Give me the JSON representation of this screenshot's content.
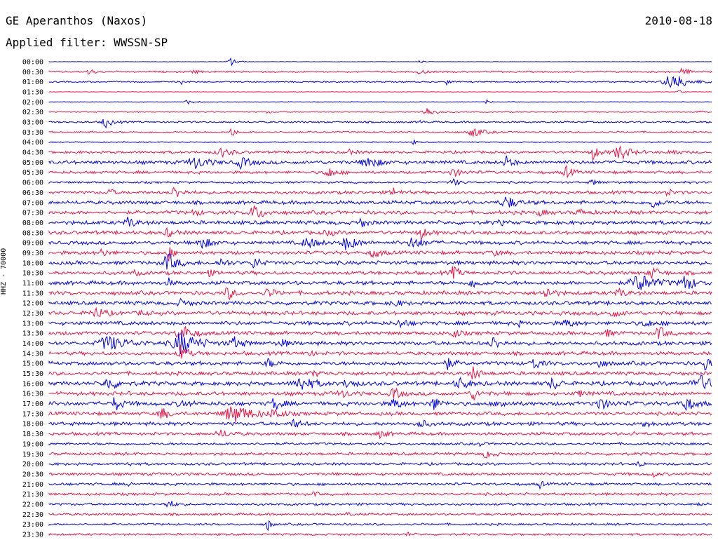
{
  "header": {
    "station": "GE Aperanthos (Naxos)",
    "date": "2010-08-18",
    "filter": "Applied filter: WWSSN-SP"
  },
  "chart_data": {
    "type": "line",
    "title": "GE Aperanthos (Naxos)",
    "subtitle": "Applied filter: WWSSN-SP",
    "date": "2010-08-18",
    "ylabel": "HHZ - 70000",
    "xlabel": "",
    "colors": [
      "#0000ee",
      "#ee1144"
    ],
    "rows": [
      "00:00",
      "00:30",
      "01:00",
      "01:30",
      "02:00",
      "02:30",
      "03:00",
      "03:30",
      "04:00",
      "04:30",
      "05:00",
      "05:30",
      "06:00",
      "06:30",
      "07:00",
      "07:30",
      "08:00",
      "08:30",
      "09:00",
      "09:30",
      "10:00",
      "10:30",
      "11:00",
      "11:30",
      "12:00",
      "12:30",
      "13:00",
      "13:30",
      "14:00",
      "14:30",
      "15:00",
      "15:30",
      "16:00",
      "16:30",
      "17:00",
      "17:30",
      "18:00",
      "18:30",
      "19:00",
      "19:30",
      "20:00",
      "20:30",
      "21:00",
      "21:30",
      "22:00",
      "22:30",
      "23:00",
      "23:30"
    ],
    "noise": [
      0.3,
      1.4,
      1.2,
      0.3,
      0.6,
      0.8,
      1.5,
      1.4,
      1.0,
      2.2,
      3.0,
      2.4,
      1.8,
      2.6,
      3.0,
      3.0,
      3.2,
      3.0,
      3.0,
      3.0,
      3.2,
      3.0,
      3.2,
      3.2,
      3.2,
      3.2,
      3.2,
      3.0,
      3.2,
      3.0,
      3.2,
      3.0,
      3.4,
      3.2,
      3.4,
      3.0,
      3.0,
      2.6,
      2.0,
      2.4,
      2.2,
      2.4,
      2.2,
      2.2,
      2.0,
      2.0,
      1.8,
      1.8
    ],
    "events": [
      [
        [
          0.275,
          6,
          2
        ],
        [
          0.56,
          3,
          1
        ]
      ],
      [
        [
          0.06,
          4,
          2
        ],
        [
          0.22,
          2,
          2
        ],
        [
          0.56,
          3,
          2
        ],
        [
          0.955,
          5,
          2
        ]
      ],
      [
        [
          0.2,
          3,
          1
        ],
        [
          0.6,
          4,
          1
        ],
        [
          0.94,
          12,
          5
        ]
      ],
      [
        [
          0.95,
          3,
          1
        ]
      ],
      [
        [
          0.21,
          3,
          2
        ],
        [
          0.66,
          3,
          1
        ]
      ],
      [
        [
          0.33,
          2,
          1
        ],
        [
          0.57,
          6,
          3
        ],
        [
          0.98,
          3,
          1
        ]
      ],
      [
        [
          0.085,
          8,
          2
        ],
        [
          0.56,
          2,
          1
        ]
      ],
      [
        [
          0.275,
          9,
          1
        ],
        [
          0.64,
          7,
          3
        ]
      ],
      [
        [
          0.55,
          3,
          1
        ]
      ],
      [
        [
          0.26,
          6,
          3
        ],
        [
          0.45,
          4,
          2
        ],
        [
          0.82,
          10,
          2
        ],
        [
          0.86,
          12,
          3
        ],
        [
          0.94,
          5,
          2
        ]
      ],
      [
        [
          0.22,
          8,
          4
        ],
        [
          0.29,
          7,
          3
        ],
        [
          0.48,
          10,
          3
        ],
        [
          0.69,
          8,
          2
        ]
      ],
      [
        [
          0.42,
          9,
          2
        ],
        [
          0.61,
          5,
          3
        ],
        [
          0.78,
          8,
          2
        ]
      ],
      [
        [
          0.61,
          5,
          2
        ],
        [
          0.82,
          4,
          2
        ]
      ],
      [
        [
          0.09,
          9,
          1
        ],
        [
          0.19,
          9,
          2
        ],
        [
          0.52,
          6,
          2
        ],
        [
          0.93,
          5,
          2
        ]
      ],
      [
        [
          0.69,
          9,
          3
        ],
        [
          0.91,
          8,
          2
        ]
      ],
      [
        [
          0.22,
          4,
          2
        ],
        [
          0.31,
          10,
          3
        ],
        [
          0.74,
          4,
          2
        ],
        [
          0.8,
          4,
          2
        ]
      ],
      [
        [
          0.12,
          8,
          2
        ],
        [
          0.47,
          6,
          2
        ],
        [
          0.68,
          4,
          1
        ]
      ],
      [
        [
          0.18,
          6,
          2
        ],
        [
          0.42,
          4,
          2
        ],
        [
          0.56,
          9,
          2
        ]
      ],
      [
        [
          0.23,
          8,
          3
        ],
        [
          0.39,
          8,
          3
        ],
        [
          0.45,
          10,
          3
        ],
        [
          0.55,
          9,
          3
        ]
      ],
      [
        [
          0.08,
          5,
          2
        ],
        [
          0.18,
          14,
          1
        ],
        [
          0.49,
          7,
          2
        ],
        [
          0.67,
          4,
          2
        ]
      ],
      [
        [
          0.18,
          12,
          3
        ],
        [
          0.26,
          6,
          2
        ],
        [
          0.31,
          8,
          2
        ]
      ],
      [
        [
          0.13,
          5,
          1
        ],
        [
          0.24,
          4,
          2
        ],
        [
          0.61,
          8,
          2
        ],
        [
          0.91,
          9,
          2
        ]
      ],
      [
        [
          0.18,
          6,
          1
        ],
        [
          0.64,
          8,
          2
        ],
        [
          0.89,
          12,
          5
        ],
        [
          0.96,
          10,
          3
        ]
      ],
      [
        [
          0.27,
          9,
          2
        ],
        [
          0.33,
          7,
          2
        ],
        [
          0.75,
          9,
          2
        ],
        [
          0.86,
          6,
          2
        ]
      ],
      [
        [
          0.2,
          5,
          2
        ],
        [
          0.52,
          5,
          2
        ]
      ],
      [
        [
          0.07,
          7,
          3
        ],
        [
          0.14,
          5,
          1
        ],
        [
          0.85,
          6,
          2
        ]
      ],
      [
        [
          0.53,
          6,
          2
        ],
        [
          0.71,
          4,
          1
        ],
        [
          0.78,
          6,
          2
        ],
        [
          0.9,
          6,
          2
        ]
      ],
      [
        [
          0.2,
          12,
          3
        ],
        [
          0.61,
          6,
          2
        ],
        [
          0.84,
          5,
          2
        ],
        [
          0.92,
          9,
          2
        ]
      ],
      [
        [
          0.09,
          10,
          6
        ],
        [
          0.2,
          16,
          5
        ],
        [
          0.28,
          7,
          3
        ],
        [
          0.35,
          6,
          2
        ],
        [
          0.67,
          9,
          2
        ]
      ],
      [
        [
          0.2,
          12,
          2
        ],
        [
          0.39,
          4,
          2
        ]
      ],
      [
        [
          0.33,
          6,
          2
        ],
        [
          0.6,
          8,
          2
        ],
        [
          0.73,
          9,
          2
        ],
        [
          0.83,
          6,
          2
        ],
        [
          0.99,
          10,
          2
        ]
      ],
      [
        [
          0.4,
          4,
          2
        ],
        [
          0.64,
          9,
          2
        ]
      ],
      [
        [
          0.09,
          8,
          3
        ],
        [
          0.38,
          10,
          4
        ],
        [
          0.45,
          7,
          2
        ],
        [
          0.62,
          7,
          3
        ],
        [
          0.76,
          9,
          2
        ],
        [
          0.98,
          12,
          4
        ]
      ],
      [
        [
          0.44,
          6,
          2
        ],
        [
          0.52,
          8,
          2
        ],
        [
          0.64,
          8,
          2
        ],
        [
          0.8,
          4,
          2
        ]
      ],
      [
        [
          0.1,
          10,
          2
        ],
        [
          0.2,
          6,
          2
        ],
        [
          0.34,
          9,
          2
        ],
        [
          0.52,
          8,
          2
        ],
        [
          0.58,
          9,
          2
        ],
        [
          0.68,
          6,
          2
        ],
        [
          0.83,
          8,
          3
        ],
        [
          0.96,
          9,
          3
        ]
      ],
      [
        [
          0.17,
          9,
          2
        ],
        [
          0.28,
          12,
          6
        ],
        [
          0.34,
          8,
          2
        ]
      ],
      [
        [
          0.37,
          6,
          2
        ],
        [
          0.56,
          6,
          2
        ],
        [
          0.9,
          4,
          2
        ]
      ],
      [
        [
          0.26,
          5,
          3
        ],
        [
          0.5,
          5,
          2
        ],
        [
          0.88,
          3,
          1
        ]
      ],
      [
        [
          0.65,
          3,
          1
        ]
      ],
      [
        [
          0.66,
          6,
          2
        ]
      ],
      [
        [
          0.12,
          3,
          1
        ],
        [
          0.89,
          5,
          1
        ]
      ],
      [
        [
          0.91,
          6,
          1
        ]
      ],
      [
        [
          0.12,
          4,
          1
        ],
        [
          0.74,
          6,
          1
        ]
      ],
      [
        [
          0.4,
          3,
          1
        ]
      ],
      [
        [
          0.18,
          6,
          2
        ],
        [
          0.98,
          3,
          1
        ]
      ],
      [
        [
          0.45,
          3,
          1
        ]
      ],
      [
        [
          0.33,
          9,
          1
        ]
      ],
      [
        [
          0.54,
          3,
          1
        ]
      ]
    ]
  }
}
